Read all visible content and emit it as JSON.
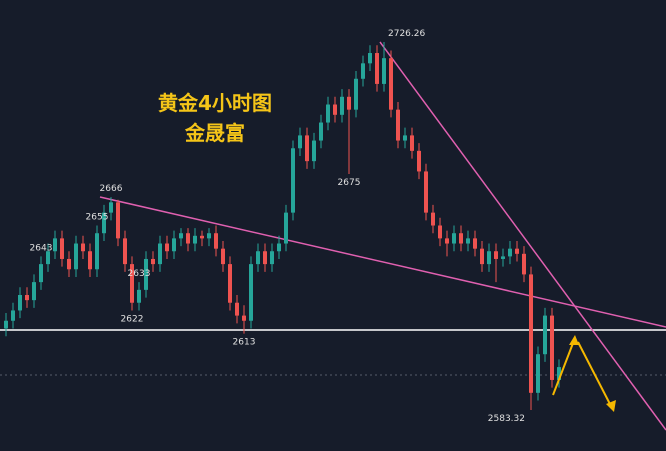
{
  "chart_data": {
    "type": "candlestick",
    "title": "黄金4小时图",
    "subtitle": "金晟富",
    "up_color": "#26a69a",
    "down_color": "#ef5350",
    "ylim": [
      2567.4,
      2742.6
    ],
    "open": [
      2615,
      2618,
      2622,
      2628,
      2626,
      2633,
      2640,
      2645,
      2650,
      2642,
      2638,
      2648,
      2645,
      2638,
      2652,
      2660,
      2664,
      2650,
      2640,
      2625,
      2630,
      2642,
      2640,
      2648,
      2645,
      2650,
      2652,
      2648,
      2651,
      2650,
      2652,
      2646,
      2640,
      2625,
      2620,
      2618,
      2640,
      2645,
      2640,
      2645,
      2648,
      2660,
      2685,
      2690,
      2680,
      2688,
      2695,
      2702,
      2698,
      2705,
      2700,
      2712,
      2718,
      2722,
      2710,
      2720,
      2700,
      2688,
      2690,
      2684,
      2676,
      2660,
      2655,
      2650,
      2648,
      2652,
      2648,
      2650,
      2646,
      2640,
      2645,
      2642,
      2643,
      2646,
      2644,
      2636,
      2590,
      2605,
      2620,
      2595
    ],
    "high": [
      2621,
      2625,
      2631,
      2631,
      2636,
      2643,
      2648,
      2653,
      2653,
      2645,
      2651,
      2651,
      2648,
      2655,
      2663,
      2666,
      2665,
      2653,
      2643,
      2633,
      2645,
      2645,
      2651,
      2651,
      2653,
      2654,
      2654,
      2654,
      2653,
      2654,
      2655,
      2649,
      2643,
      2628,
      2624,
      2643,
      2648,
      2648,
      2648,
      2651,
      2663,
      2688,
      2693,
      2693,
      2691,
      2698,
      2705,
      2705,
      2708,
      2708,
      2715,
      2721,
      2725,
      2725,
      2726.26,
      2723,
      2703,
      2693,
      2693,
      2687,
      2679,
      2663,
      2658,
      2653,
      2655,
      2655,
      2653,
      2653,
      2649,
      2648,
      2648,
      2646,
      2649,
      2649,
      2647,
      2639,
      2608,
      2623,
      2623,
      2603
    ],
    "low": [
      2612,
      2615,
      2619,
      2623,
      2623,
      2630,
      2637,
      2642,
      2639,
      2635,
      2635,
      2642,
      2635,
      2635,
      2649,
      2657,
      2647,
      2637,
      2622,
      2622,
      2627,
      2637,
      2637,
      2642,
      2642,
      2647,
      2645,
      2645,
      2647,
      2647,
      2643,
      2637,
      2622,
      2617,
      2613,
      2615,
      2637,
      2637,
      2637,
      2642,
      2645,
      2657,
      2682,
      2677,
      2677,
      2685,
      2692,
      2695,
      2695,
      2675,
      2697,
      2709,
      2715,
      2707,
      2707,
      2697,
      2685,
      2685,
      2681,
      2673,
      2657,
      2652,
      2647,
      2643,
      2645,
      2645,
      2645,
      2643,
      2637,
      2637,
      2633,
      2639,
      2640,
      2641,
      2633,
      2583.32,
      2587,
      2602,
      2592,
      2592
    ],
    "close": [
      2618,
      2622,
      2628,
      2626,
      2633,
      2640,
      2645,
      2650,
      2642,
      2638,
      2648,
      2645,
      2638,
      2652,
      2660,
      2664,
      2650,
      2640,
      2625,
      2630,
      2642,
      2640,
      2648,
      2645,
      2650,
      2652,
      2648,
      2651,
      2650,
      2652,
      2646,
      2640,
      2625,
      2620,
      2618,
      2640,
      2645,
      2640,
      2645,
      2648,
      2660,
      2685,
      2690,
      2680,
      2688,
      2695,
      2702,
      2698,
      2705,
      2700,
      2712,
      2718,
      2722,
      2710,
      2720,
      2700,
      2688,
      2690,
      2684,
      2676,
      2660,
      2655,
      2650,
      2648,
      2652,
      2648,
      2650,
      2646,
      2640,
      2645,
      2642,
      2643,
      2646,
      2644,
      2636,
      2590,
      2605,
      2620,
      2595,
      2600
    ],
    "price_labels": [
      2666,
      2622,
      2655,
      2613,
      2675,
      2726.26,
      2643,
      2633,
      2583.32
    ]
  }
}
